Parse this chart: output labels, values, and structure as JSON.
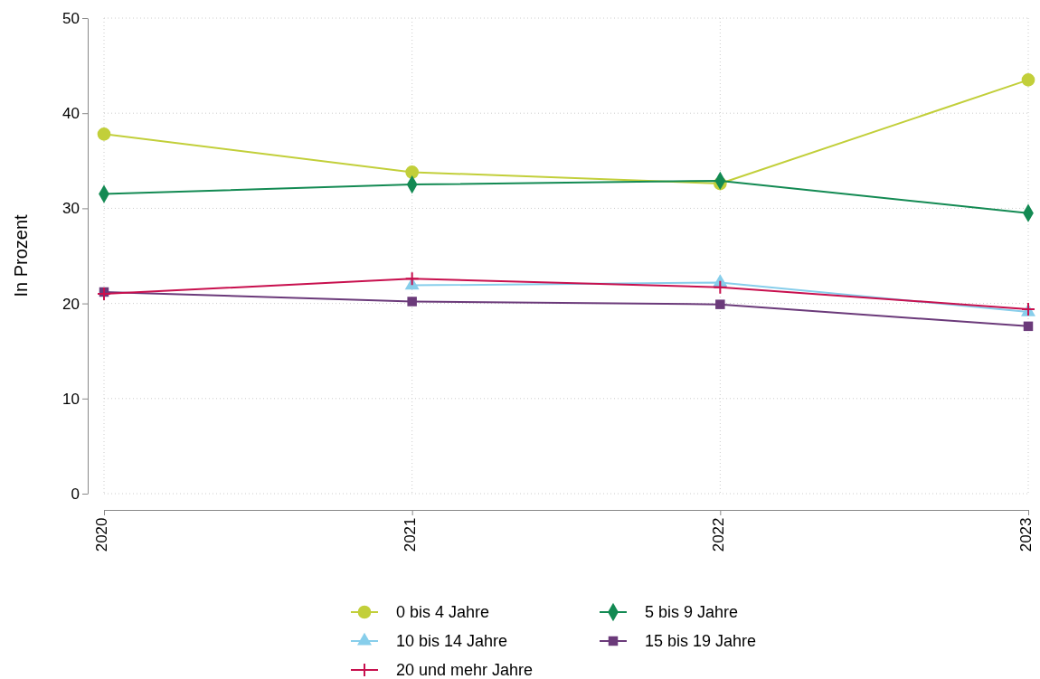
{
  "chart_data": {
    "type": "line",
    "ylabel": "In Prozent",
    "categories": [
      "2020",
      "2021",
      "2022",
      "2023"
    ],
    "ylim": [
      0,
      50
    ],
    "yticks": [
      0,
      10,
      20,
      30,
      40,
      50
    ],
    "grid": true,
    "legend": "bottom",
    "line_style": "solid",
    "series": [
      {
        "name": "0 bis 4 Jahre",
        "color": "#c2cf3a",
        "marker": "circle",
        "values": [
          37.8,
          33.8,
          32.6,
          43.5
        ]
      },
      {
        "name": "5 bis 9 Jahre",
        "color": "#138a53",
        "marker": "diamond",
        "values": [
          31.5,
          32.5,
          32.9,
          29.5
        ]
      },
      {
        "name": "10 bis 14 Jahre",
        "color": "#87ceeb",
        "marker": "triangle",
        "values": [
          null,
          21.9,
          22.2,
          19.1
        ]
      },
      {
        "name": "15 bis 19 Jahre",
        "color": "#6b3a7a",
        "marker": "square",
        "values": [
          21.2,
          20.2,
          19.9,
          17.6
        ]
      },
      {
        "name": "20 und mehr Jahre",
        "color": "#c8104e",
        "marker": "cross",
        "values": [
          21.0,
          22.6,
          21.7,
          19.4
        ]
      }
    ]
  }
}
